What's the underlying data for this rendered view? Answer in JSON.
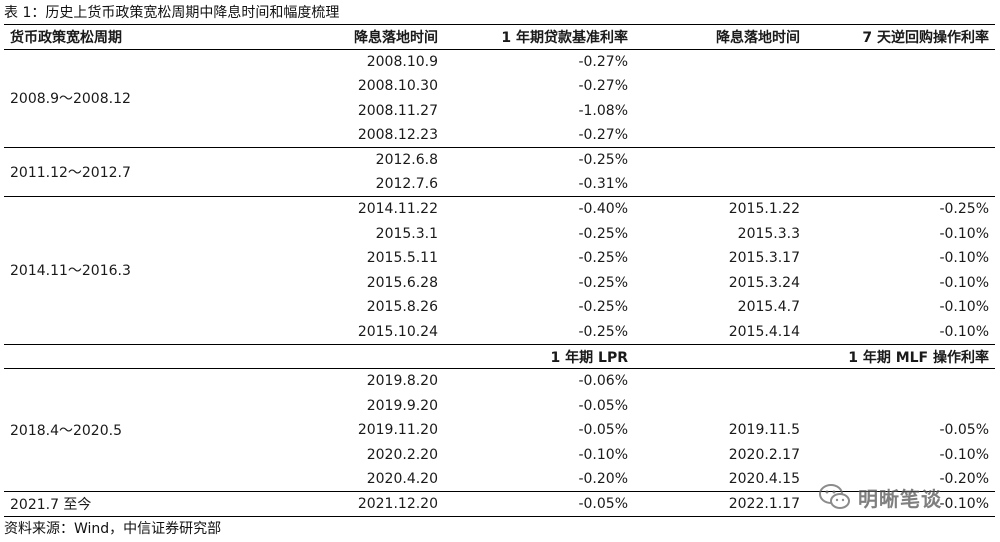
{
  "caption": "表 1：历史上货币政策宽松周期中降息时间和幅度梳理",
  "source": "资料来源：Wind，中信证券研究部",
  "headers": {
    "period": "货币政策宽松周期",
    "cut_date": "降息落地时间",
    "rate1": "1 年期贷款基准利率",
    "cut_date2": "降息落地时间",
    "rate2": "7 天逆回购操作利率"
  },
  "subheader": {
    "rate1": "1 年期 LPR",
    "rate2": "1 年期 MLF 操作利率"
  },
  "cycles": [
    {
      "period": "2008.9～2008.12",
      "rows": [
        {
          "d1": "2008.10.9",
          "r1": "-0.27%",
          "d2": "",
          "r2": ""
        },
        {
          "d1": "2008.10.30",
          "r1": "-0.27%",
          "d2": "",
          "r2": ""
        },
        {
          "d1": "2008.11.27",
          "r1": "-1.08%",
          "d2": "",
          "r2": ""
        },
        {
          "d1": "2008.12.23",
          "r1": "-0.27%",
          "d2": "",
          "r2": ""
        }
      ]
    },
    {
      "period": "2011.12～2012.7",
      "rows": [
        {
          "d1": "2012.6.8",
          "r1": "-0.25%",
          "d2": "",
          "r2": ""
        },
        {
          "d1": "2012.7.6",
          "r1": "-0.31%",
          "d2": "",
          "r2": ""
        }
      ]
    },
    {
      "period": "2014.11～2016.3",
      "rows": [
        {
          "d1": "2014.11.22",
          "r1": "-0.40%",
          "d2": "2015.1.22",
          "r2": "-0.25%"
        },
        {
          "d1": "2015.3.1",
          "r1": "-0.25%",
          "d2": "2015.3.3",
          "r2": "-0.10%"
        },
        {
          "d1": "2015.5.11",
          "r1": "-0.25%",
          "d2": "2015.3.17",
          "r2": "-0.10%"
        },
        {
          "d1": "2015.6.28",
          "r1": "-0.25%",
          "d2": "2015.3.24",
          "r2": "-0.10%"
        },
        {
          "d1": "2015.8.26",
          "r1": "-0.25%",
          "d2": "2015.4.7",
          "r2": "-0.10%"
        },
        {
          "d1": "2015.10.24",
          "r1": "-0.25%",
          "d2": "2015.4.14",
          "r2": "-0.10%"
        }
      ]
    },
    {
      "period": "2018.4～2020.5",
      "rows": [
        {
          "d1": "2019.8.20",
          "r1": "-0.06%",
          "d2": "",
          "r2": ""
        },
        {
          "d1": "2019.9.20",
          "r1": "-0.05%",
          "d2": "",
          "r2": ""
        },
        {
          "d1": "2019.11.20",
          "r1": "-0.05%",
          "d2": "2019.11.5",
          "r2": "-0.05%"
        },
        {
          "d1": "2020.2.20",
          "r1": "-0.10%",
          "d2": "2020.2.17",
          "r2": "-0.10%"
        },
        {
          "d1": "2020.4.20",
          "r1": "-0.20%",
          "d2": "2020.4.15",
          "r2": "-0.20%"
        }
      ]
    },
    {
      "period": "2021.7 至今",
      "rows": [
        {
          "d1": "2021.12.20",
          "r1": "-0.05%",
          "d2": "2022.1.17",
          "r2": "-0.10%"
        }
      ]
    }
  ],
  "watermark": {
    "text": "明晰笔谈",
    "icon": "wechat-icon"
  }
}
